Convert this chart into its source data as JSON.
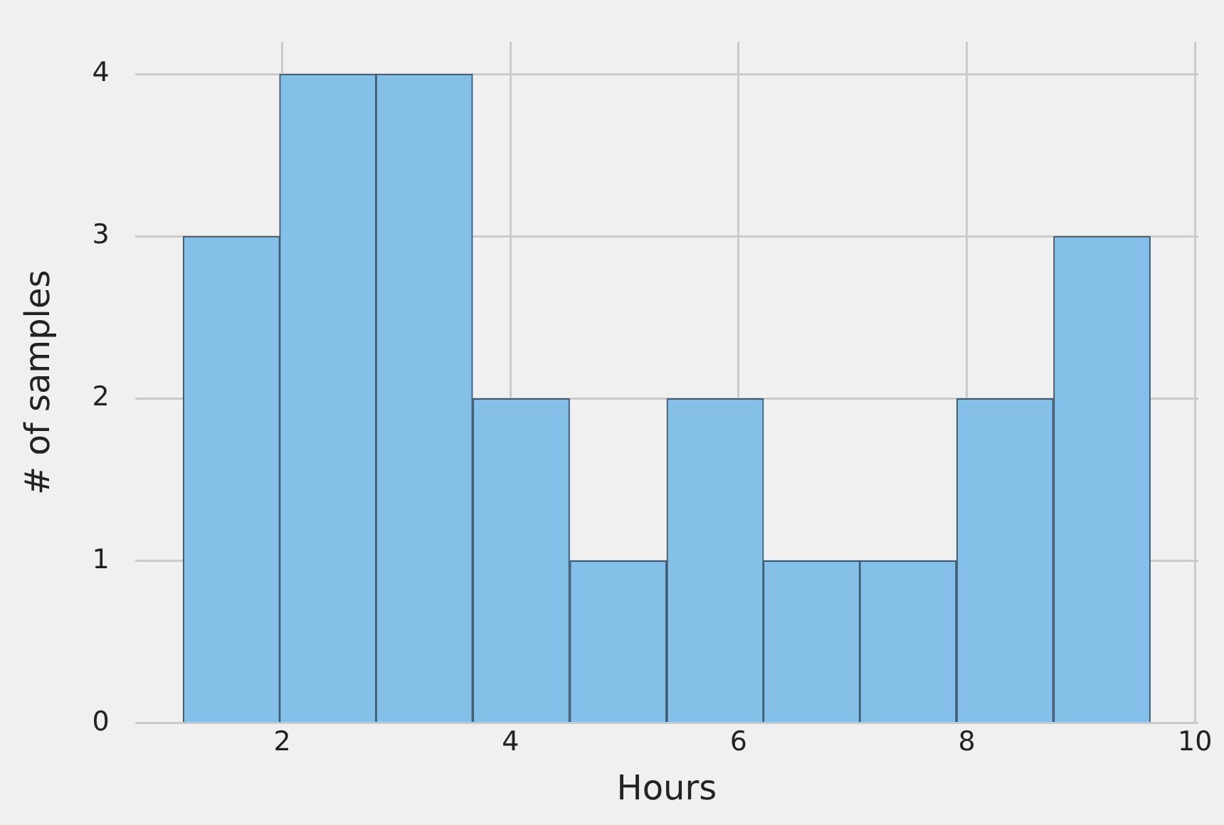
{
  "chart_data": {
    "type": "histogram",
    "xlabel": "Hours",
    "ylabel": "# of samples",
    "bins": [
      1.13,
      1.98,
      2.82,
      3.67,
      4.52,
      5.37,
      6.22,
      7.06,
      7.91,
      8.76,
      9.61
    ],
    "values": [
      3,
      4,
      4,
      2,
      1,
      2,
      1,
      1,
      2,
      3
    ],
    "color": "#85c0e9",
    "xlim": [
      0.71,
      10.03
    ],
    "xticks": [
      2,
      4,
      6,
      8,
      10
    ],
    "ylim": [
      0,
      4.2
    ],
    "yticks": [
      0,
      1,
      2,
      3,
      4
    ],
    "grid": true
  }
}
